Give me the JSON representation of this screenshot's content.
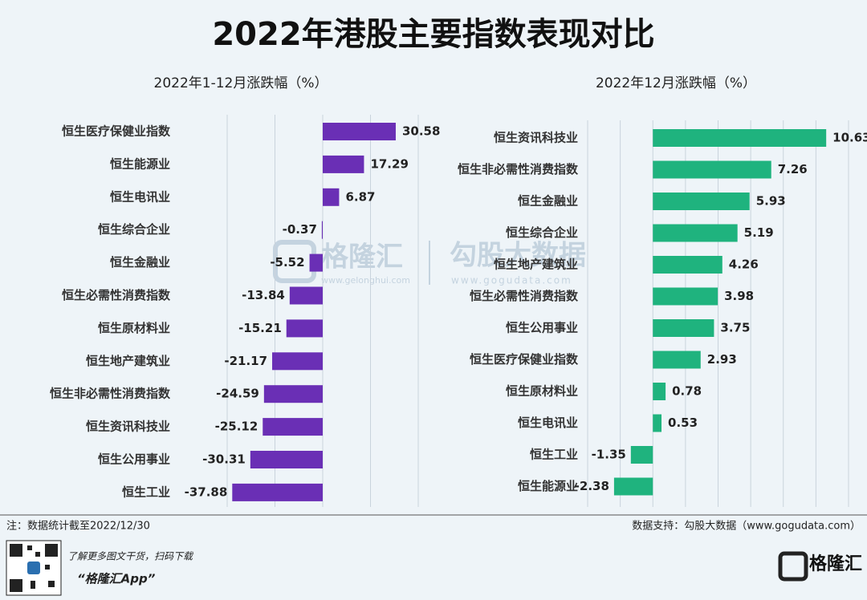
{
  "title": "2022年港股主要指数表现对比",
  "chart_data": [
    {
      "type": "bar",
      "orientation": "horizontal",
      "subtitle": "2022年1-12月涨跌幅（%）",
      "categories": [
        "恒生医疗保健业指数",
        "恒生能源业",
        "恒生电讯业",
        "恒生综合企业",
        "恒生金融业",
        "恒生必需性消费指数",
        "恒生原材料业",
        "恒生地产建筑业",
        "恒生非必需性消费指数",
        "恒生资讯科技业",
        "恒生公用事业",
        "恒生工业"
      ],
      "values": [
        30.58,
        17.29,
        6.87,
        -0.37,
        -5.52,
        -13.84,
        -15.21,
        -21.17,
        -24.59,
        -25.12,
        -30.31,
        -37.88
      ],
      "color": "#6a2fb5",
      "xlim": [
        -40,
        40
      ],
      "xticks": [
        -40,
        -20,
        0,
        20,
        40
      ],
      "grid": true
    },
    {
      "type": "bar",
      "orientation": "horizontal",
      "subtitle": "2022年12月涨跌幅（%）",
      "categories": [
        "恒生资讯科技业",
        "恒生非必需性消费指数",
        "恒生金融业",
        "恒生综合企业",
        "恒生地产建筑业",
        "恒生必需性消费指数",
        "恒生公用事业",
        "恒生医疗保健业指数",
        "恒生原材料业",
        "恒生电讯业",
        "恒生工业",
        "恒生能源业"
      ],
      "values": [
        10.63,
        7.26,
        5.93,
        5.19,
        4.26,
        3.98,
        3.75,
        2.93,
        0.78,
        0.53,
        -1.35,
        -2.38
      ],
      "color": "#1fb37e",
      "xlim": [
        -4,
        12
      ],
      "xticks": [
        -4,
        -2,
        0,
        2,
        4,
        6,
        8,
        10,
        12
      ],
      "grid": true
    }
  ],
  "footer": {
    "note": "注：数据统计截至2022/12/30",
    "source": "数据支持：勾股大数据（www.gogudata.com）",
    "promo": "了解更多图文干货，扫码下载",
    "app": "“格隆汇App”",
    "logo": "格隆汇"
  },
  "watermark": {
    "brand1": "格隆汇",
    "url1": "www.gelonghui.com",
    "brand2": "勾股大数据",
    "url2": "www.gogudata.com"
  }
}
